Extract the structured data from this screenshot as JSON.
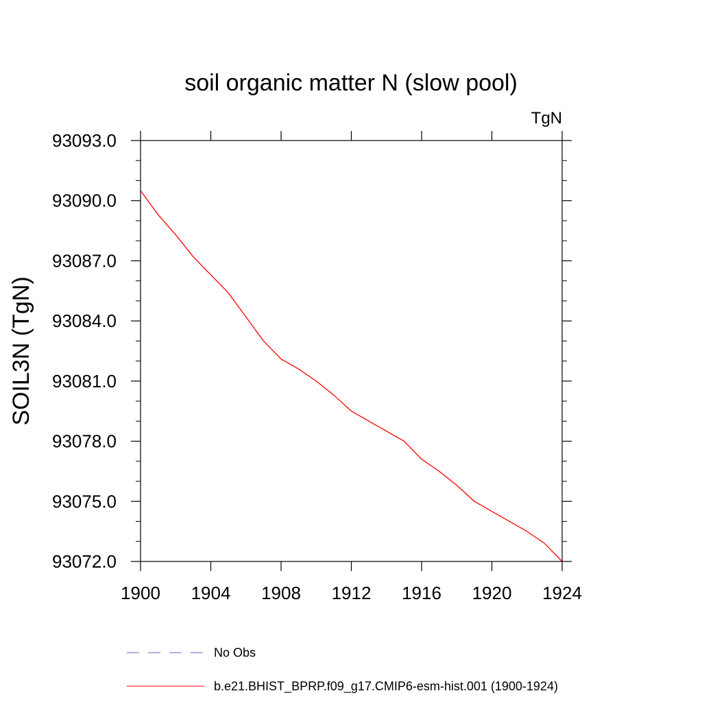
{
  "chart_data": {
    "type": "line",
    "title": "soil organic matter N (slow pool)",
    "units_label": "TgN",
    "ylabel": "SOIL3N  (TgN)",
    "xlabel": "",
    "xlim": [
      1900,
      1924
    ],
    "ylim": [
      93072.0,
      93093.0
    ],
    "x_ticks": [
      1900,
      1904,
      1908,
      1912,
      1916,
      1920,
      1924
    ],
    "x_tick_labels": [
      "1900",
      "1904",
      "1908",
      "1912",
      "1916",
      "1920",
      "1924"
    ],
    "y_ticks": [
      93072,
      93075,
      93078,
      93081,
      93084,
      93087,
      93090,
      93093
    ],
    "y_tick_labels": [
      "93072.0",
      "93075.0",
      "93078.0",
      "93081.0",
      "93084.0",
      "93087.0",
      "93090.0",
      "93093.0"
    ],
    "grid": false,
    "legend_position": "bottom",
    "series": [
      {
        "name": "No Obs",
        "color": "#6060c0",
        "dash": "dashed",
        "x": [],
        "y": []
      },
      {
        "name": "b.e21.BHIST_BPRP.f09_g17.CMIP6-esm-hist.001 (1900-1924)",
        "color": "#ff0000",
        "dash": "solid",
        "x": [
          1900,
          1901,
          1902,
          1903,
          1904,
          1905,
          1906,
          1907,
          1908,
          1909,
          1910,
          1911,
          1912,
          1913,
          1914,
          1915,
          1916,
          1917,
          1918,
          1919,
          1920,
          1921,
          1922,
          1923,
          1924
        ],
        "y": [
          93090.5,
          93089.3,
          93088.3,
          93087.2,
          93086.3,
          93085.4,
          93084.2,
          93083.0,
          93082.1,
          93081.6,
          93081.0,
          93080.3,
          93079.5,
          93079.0,
          93078.5,
          93078.0,
          93077.1,
          93076.5,
          93075.8,
          93075.0,
          93074.5,
          93074.0,
          93073.5,
          93072.9,
          93072.0
        ]
      }
    ]
  }
}
